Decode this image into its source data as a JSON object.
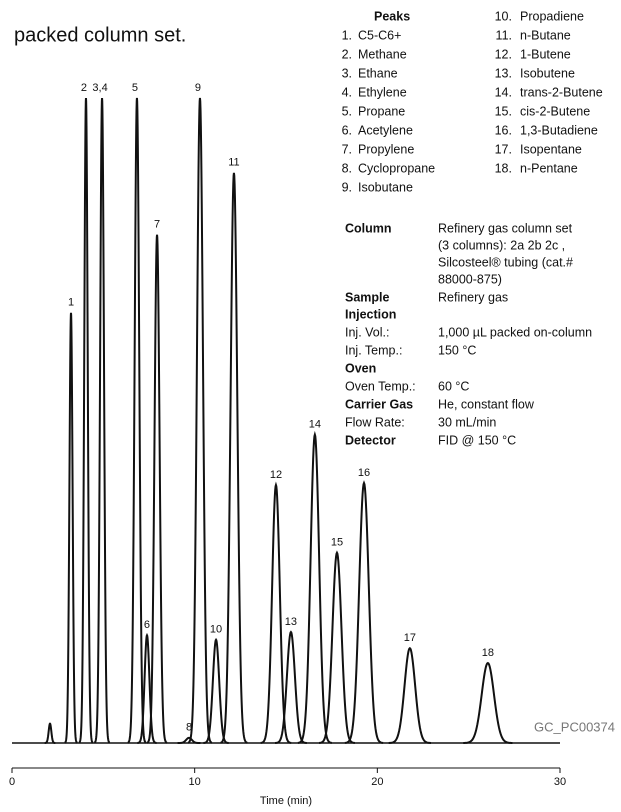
{
  "caption": "packed column set.",
  "peak_list": {
    "title": "Peaks",
    "items": [
      {
        "number": "1.",
        "name": "C5-C6+"
      },
      {
        "number": "2.",
        "name": "Methane"
      },
      {
        "number": "3.",
        "name": "Ethane"
      },
      {
        "number": "4.",
        "name": "Ethylene"
      },
      {
        "number": "5.",
        "name": "Propane"
      },
      {
        "number": "6.",
        "name": "Acetylene"
      },
      {
        "number": "7.",
        "name": "Propylene"
      },
      {
        "number": "8.",
        "name": "Cyclopropane"
      },
      {
        "number": "9.",
        "name": "Isobutane"
      },
      {
        "number": "10.",
        "name": "Propadiene"
      },
      {
        "number": "11.",
        "name": "n-Butane"
      },
      {
        "number": "12.",
        "name": "1-Butene"
      },
      {
        "number": "13.",
        "name": "Isobutene"
      },
      {
        "number": "14.",
        "name": "trans-2-Butene"
      },
      {
        "number": "15.",
        "name": "cis-2-Butene"
      },
      {
        "number": "16.",
        "name": "1,3-Butadiene"
      },
      {
        "number": "17.",
        "name": "Isopentane"
      },
      {
        "number": "18.",
        "name": "n-Pentane"
      }
    ]
  },
  "conditions": [
    {
      "label": [
        "Column"
      ],
      "bold": true,
      "value": [
        "Refinery gas column set",
        "(3 columns): 2a 2b 2c ,",
        "Silcosteel® tubing (cat.#",
        "88000-875)"
      ]
    },
    {
      "label": [
        "Sample",
        "Injection"
      ],
      "bold": true,
      "value": [
        "Refinery gas"
      ]
    },
    {
      "label": [
        "Inj. Vol.:"
      ],
      "bold": false,
      "value": [
        "1,000 µL packed on-column"
      ]
    },
    {
      "label": [
        "Inj. Temp.:"
      ],
      "bold": false,
      "value": [
        "150 °C"
      ]
    },
    {
      "label": [
        "Oven"
      ],
      "bold": true,
      "value": []
    },
    {
      "label": [
        "Oven Temp.:"
      ],
      "bold": false,
      "value": [
        "60 °C"
      ]
    },
    {
      "label": [
        "Carrier Gas"
      ],
      "bold": true,
      "value": [
        "He, constant flow"
      ]
    },
    {
      "label": [
        "Flow Rate:"
      ],
      "bold": false,
      "value": [
        "30 mL/min"
      ]
    },
    {
      "label": [
        "Detector"
      ],
      "bold": true,
      "value": [
        "FID @ 150 °C"
      ]
    }
  ],
  "chart_data": {
    "type": "chromatogram",
    "x_label": "Time (min)",
    "watermark": "GC_PC00374",
    "xlim": [
      0,
      30
    ],
    "xticks": [
      0,
      10,
      20,
      30
    ],
    "ylim": [
      0,
      100
    ],
    "color": "#111111",
    "peak_labels": [
      null,
      "1",
      "2",
      "3,4",
      "5",
      "6",
      "7",
      "8",
      "9",
      "10",
      "11",
      "12",
      "13",
      "14",
      "15",
      "16",
      "17",
      "18"
    ],
    "x": [
      2.08,
      3.23,
      4.05,
      4.93,
      6.84,
      7.39,
      7.94,
      9.69,
      10.29,
      11.17,
      12.15,
      14.45,
      15.27,
      16.58,
      17.79,
      19.27,
      21.78,
      26.05
    ],
    "values": [
      3,
      66.7,
      100,
      100,
      100,
      16.7,
      78.8,
      0.8,
      100,
      16,
      88.4,
      40,
      17.2,
      47.8,
      29.5,
      40.3,
      14.7,
      12.4
    ]
  }
}
